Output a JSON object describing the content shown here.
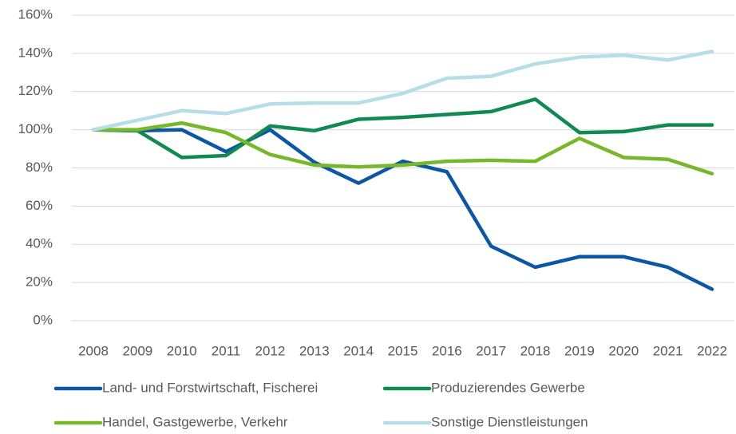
{
  "chart_data": {
    "type": "line",
    "categories": [
      "2008",
      "2009",
      "2010",
      "2011",
      "2012",
      "2013",
      "2014",
      "2015",
      "2016",
      "2017",
      "2018",
      "2019",
      "2020",
      "2021",
      "2022"
    ],
    "series": [
      {
        "name": "Land- und Forstwirtschaft, Fischerei",
        "color": "#0b57a4",
        "values": [
          100,
          99.5,
          100,
          88.5,
          100,
          83,
          72,
          83.5,
          78,
          39,
          28,
          33.5,
          33.5,
          28,
          16.5
        ]
      },
      {
        "name": "Produzierendes Gewerbe",
        "color": "#108a52",
        "values": [
          100,
          99.5,
          85.5,
          86.5,
          102,
          99.5,
          105.5,
          106.5,
          108,
          109.5,
          116,
          98.5,
          99,
          102.5,
          102.5
        ]
      },
      {
        "name": "Handel, Gastgewerbe, Verkehr",
        "color": "#76b82a",
        "values": [
          100,
          100,
          103.5,
          98.5,
          87,
          81.5,
          80.5,
          81.5,
          83.5,
          84,
          83.5,
          95.5,
          85.5,
          84.5,
          77
        ]
      },
      {
        "name": "Sonstige Dienstleistungen",
        "color": "#b7dde6",
        "values": [
          100,
          105,
          110,
          108.5,
          113.5,
          114,
          114,
          119,
          127,
          128,
          134.5,
          138,
          139,
          136.5,
          141
        ]
      }
    ],
    "ylim": [
      0,
      160
    ],
    "yticks": [
      {
        "value": 0,
        "label": "0%"
      },
      {
        "value": 20,
        "label": "20%"
      },
      {
        "value": 40,
        "label": "40%"
      },
      {
        "value": 60,
        "label": "60%"
      },
      {
        "value": 80,
        "label": "80%"
      },
      {
        "value": 100,
        "label": "100%"
      },
      {
        "value": 120,
        "label": "120%"
      },
      {
        "value": 140,
        "label": "140%"
      },
      {
        "value": 160,
        "label": "160%"
      }
    ],
    "grid": true,
    "legend": "bottom"
  }
}
